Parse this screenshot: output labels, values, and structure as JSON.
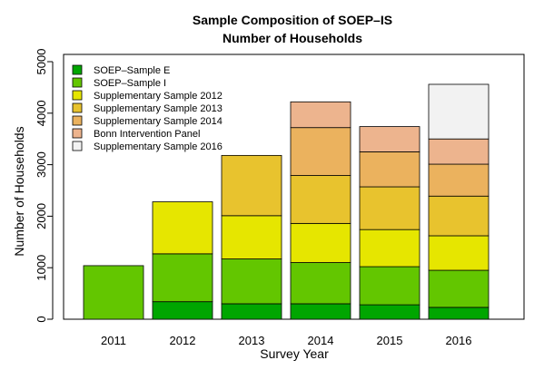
{
  "chart_data": {
    "type": "bar",
    "stacked": true,
    "title": "Sample Composition of SOEP–IS",
    "subtitle": "Number of Households",
    "xlabel": "Survey Year",
    "ylabel": "Number of Households",
    "ylim": [
      0,
      5000
    ],
    "yticks": [
      0,
      1000,
      2000,
      3000,
      4000,
      5000
    ],
    "grid": false,
    "legend_position": "top-left",
    "categories": [
      "2011",
      "2012",
      "2013",
      "2014",
      "2015",
      "2016"
    ],
    "series": [
      {
        "name": "SOEP–Sample E",
        "color": "#00A600",
        "values": [
          0,
          340,
          300,
          300,
          280,
          230
        ]
      },
      {
        "name": "SOEP–Sample I",
        "color": "#63C600",
        "values": [
          1040,
          930,
          870,
          800,
          740,
          720
        ]
      },
      {
        "name": "Supplementary Sample 2012",
        "color": "#E6E600",
        "values": [
          0,
          1010,
          840,
          760,
          720,
          670
        ]
      },
      {
        "name": "Supplementary Sample 2013",
        "color": "#E8C32E",
        "values": [
          0,
          0,
          1170,
          930,
          830,
          770
        ]
      },
      {
        "name": "Supplementary Sample 2014",
        "color": "#EBB25E",
        "values": [
          0,
          0,
          0,
          930,
          680,
          620
        ]
      },
      {
        "name": "Bonn Intervention Panel",
        "color": "#EDB48E",
        "values": [
          0,
          0,
          0,
          500,
          490,
          490
        ]
      },
      {
        "name": "Supplementary Sample 2016",
        "color": "#F2F2F2",
        "values": [
          0,
          0,
          0,
          0,
          0,
          1060
        ]
      }
    ]
  }
}
